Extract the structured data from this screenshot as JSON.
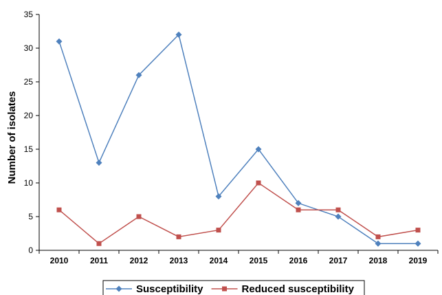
{
  "chart_data": {
    "type": "line",
    "title": "",
    "xlabel": "",
    "ylabel": "Number of isolates",
    "categories": [
      "2010",
      "2011",
      "2012",
      "2013",
      "2014",
      "2015",
      "2016",
      "2017",
      "2018",
      "2019"
    ],
    "ylim": [
      0,
      35
    ],
    "yticks": [
      0,
      5,
      10,
      15,
      20,
      25,
      30,
      35
    ],
    "grid": false,
    "legend_position": "bottom",
    "series": [
      {
        "name": "Susceptibility",
        "values": [
          31,
          13,
          26,
          32,
          8,
          15,
          7,
          5,
          1,
          1
        ],
        "color": "#4f81bd",
        "marker": "diamond"
      },
      {
        "name": "Reduced susceptibility",
        "values": [
          6,
          1,
          5,
          2,
          3,
          10,
          6,
          6,
          2,
          3
        ],
        "color": "#c0504d",
        "marker": "square"
      }
    ]
  }
}
